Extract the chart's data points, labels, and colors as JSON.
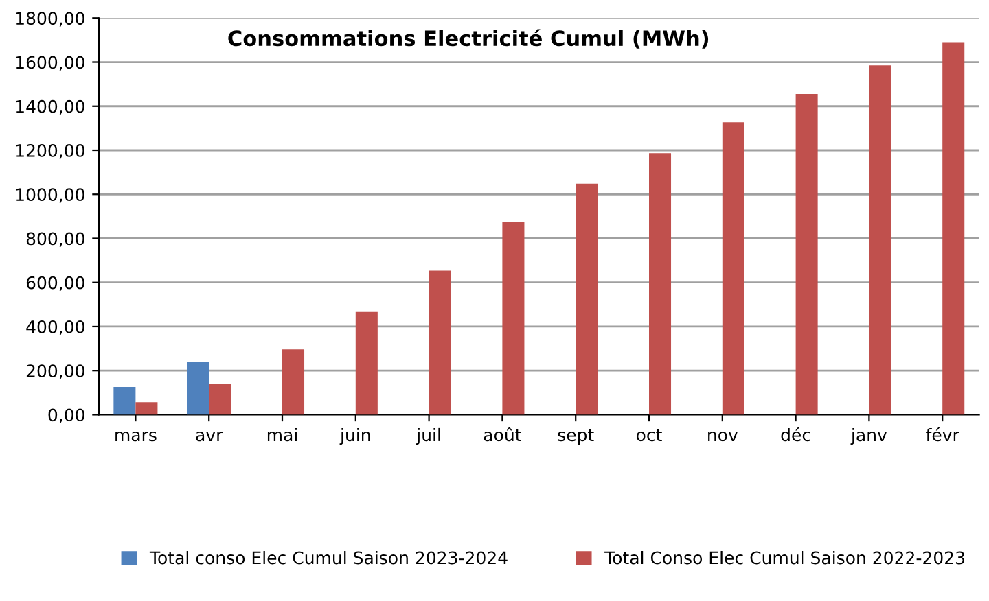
{
  "chart_data": {
    "type": "bar",
    "title": "Consommations Electricité Cumul (MWh)",
    "categories": [
      "mars",
      "avr",
      "mai",
      "juin",
      "juil",
      "août",
      "sept",
      "oct",
      "nov",
      "déc",
      "janv",
      "févr"
    ],
    "series": [
      {
        "name": "Total conso Elec Cumul Saison 2023-2024",
        "color": "#4f81bd",
        "values": [
          126,
          240,
          null,
          null,
          null,
          null,
          null,
          null,
          null,
          null,
          null,
          null
        ]
      },
      {
        "name": "Total Conso Elec Cumul Saison 2022-2023",
        "color": "#c0504d",
        "values": [
          57,
          138,
          296,
          466,
          654,
          875,
          1048,
          1187,
          1327,
          1455,
          1585,
          1690
        ]
      }
    ],
    "ylim": [
      0,
      1800
    ],
    "yticks": [
      {
        "value": 0,
        "label": "0,00"
      },
      {
        "value": 200,
        "label": "200,00"
      },
      {
        "value": 400,
        "label": "400,00"
      },
      {
        "value": 600,
        "label": "600,00"
      },
      {
        "value": 800,
        "label": "800,00"
      },
      {
        "value": 1000,
        "label": "1000,00"
      },
      {
        "value": 1200,
        "label": "1200,00"
      },
      {
        "value": 1400,
        "label": "1400,00"
      },
      {
        "value": 1600,
        "label": "1600,00"
      },
      {
        "value": 1800,
        "label": "1800,00"
      }
    ],
    "grid": "y",
    "legend": "bottom"
  }
}
